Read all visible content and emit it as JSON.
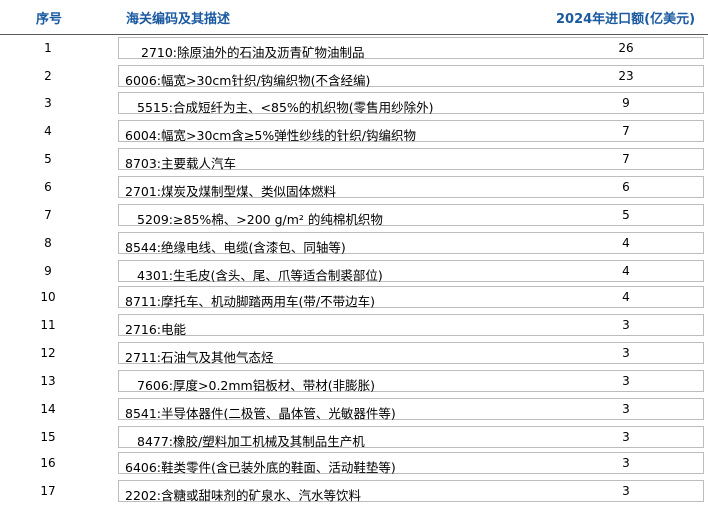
{
  "header": {
    "col_no": "序号",
    "col_desc": "海关编码及其描述",
    "col_value": "2024年进口额(亿美元)"
  },
  "rows": [
    {
      "no": "1",
      "desc": "2710:除原油外的石油及沥青矿物油制品",
      "value": "26"
    },
    {
      "no": "2",
      "desc": "6006:幅宽>30cm针织/钩编织物(不含经编)",
      "value": "23"
    },
    {
      "no": "3",
      "desc": "5515:合成短纤为主、<85%的机织物(零售用纱除外)",
      "value": "9"
    },
    {
      "no": "4",
      "desc": "6004:幅宽>30cm含≥5%弹性纱线的针织/钩编织物",
      "value": "7"
    },
    {
      "no": "5",
      "desc": "8703:主要载人汽车",
      "value": "7"
    },
    {
      "no": "6",
      "desc": "2701:煤炭及煤制型煤、类似固体燃料",
      "value": "6"
    },
    {
      "no": "7",
      "desc": "5209:≥85%棉、>200 g/m² 的纯棉机织物",
      "value": "5"
    },
    {
      "no": "8",
      "desc": "8544:绝缘电线、电缆(含漆包、同轴等)",
      "value": "4"
    },
    {
      "no": "9",
      "desc": "4301:生毛皮(含头、尾、爪等适合制裘部位)",
      "value": "4"
    },
    {
      "no": "10",
      "desc": "8711:摩托车、机动脚踏两用车(带/不带边车)",
      "value": "4"
    },
    {
      "no": "11",
      "desc": "2716:电能",
      "value": "3"
    },
    {
      "no": "12",
      "desc": "2711:石油气及其他气态烃",
      "value": "3"
    },
    {
      "no": "13",
      "desc": "7606:厚度>0.2mm铝板材、带材(非膨胀)",
      "value": "3"
    },
    {
      "no": "14",
      "desc": "8541:半导体器件(二极管、晶体管、光敏器件等)",
      "value": "3"
    },
    {
      "no": "15",
      "desc": "8477:橡胶/塑料加工机械及其制品生产机",
      "value": "3"
    },
    {
      "no": "16",
      "desc": "6406:鞋类零件(含已装外底的鞋面、活动鞋垫等)",
      "value": "3"
    },
    {
      "no": "17",
      "desc": "2202:含糖或甜味剂的矿泉水、汽水等饮料",
      "value": "3"
    }
  ]
}
